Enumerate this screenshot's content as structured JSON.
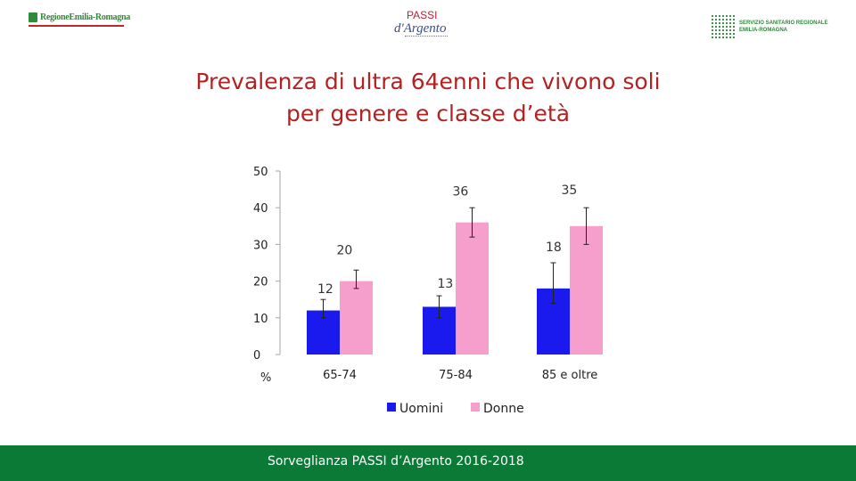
{
  "header": {
    "left_logo": {
      "text": "RegioneEmilia-Romagna",
      "icon": "region-emblem-icon",
      "color": "#2e8b3a",
      "accent": "#c0262d"
    },
    "center_logo": {
      "line1": "PASSI",
      "line2": "d'Argento"
    },
    "right_logo": {
      "line1": "SERVIZIO SANITARIO REGIONALE",
      "line2": "EMILIA-ROMAGNA",
      "icon": "dot-grid-icon",
      "color": "#2e8b3a"
    }
  },
  "title": {
    "line1": "Prevalenza di ultra 64enni che vivono soli",
    "line2": "per genere e classe d’età",
    "color": "#b22222"
  },
  "chart_data": {
    "type": "bar",
    "categories": [
      "65-74",
      "75-84",
      "85 e oltre"
    ],
    "series": [
      {
        "name": "Uomini",
        "color": "#1a1aee",
        "values": [
          12,
          13,
          18
        ],
        "error_low": [
          10,
          10,
          14
        ],
        "error_high": [
          15,
          16,
          25
        ],
        "labels": [
          "12",
          "13",
          "18"
        ]
      },
      {
        "name": "Donne",
        "color": "#f79fcc",
        "values": [
          20,
          36,
          35
        ],
        "error_low": [
          18,
          32,
          30
        ],
        "error_high": [
          23,
          40,
          40
        ],
        "labels": [
          "20",
          "36",
          "35"
        ]
      }
    ],
    "ylim": [
      0,
      50
    ],
    "yticks": [
      "0",
      "10",
      "20",
      "30",
      "40",
      "50"
    ],
    "ytick_values": [
      0,
      10,
      20,
      30,
      40,
      50
    ],
    "ylabel": "%",
    "xlabel": "",
    "grid": false,
    "legend": "bottom"
  },
  "footer": {
    "text": "Sorveglianza PASSI d’Argento 2016-2018",
    "color": "#0a7a36"
  }
}
